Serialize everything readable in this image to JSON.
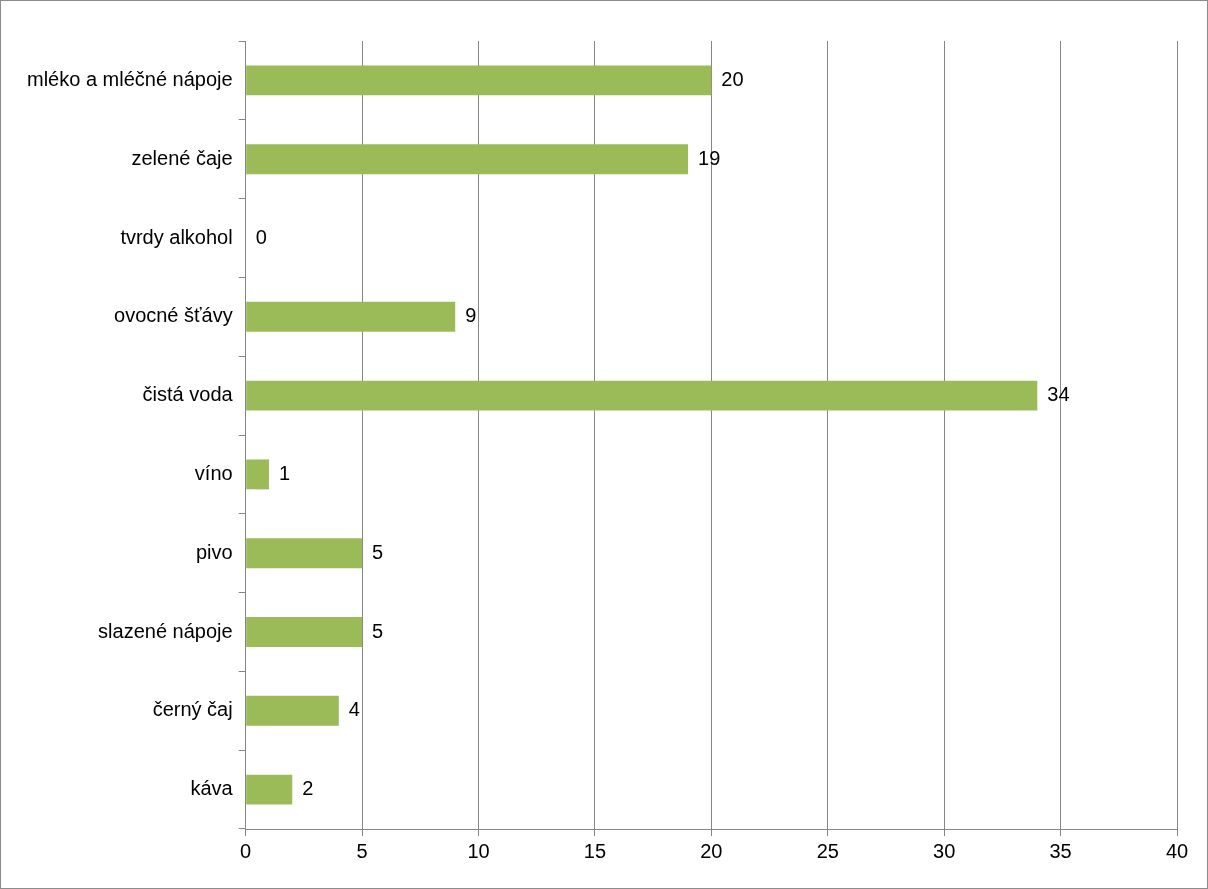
{
  "chart_data": {
    "type": "bar",
    "orientation": "horizontal",
    "categories": [
      "mléko a mléčné nápoje",
      "zelené čaje",
      "tvrdy alkohol",
      "ovocné šťávy",
      "čistá voda",
      "víno",
      "pivo",
      "slazené nápoje",
      "černý čaj",
      "káva"
    ],
    "values": [
      20,
      19,
      0,
      9,
      34,
      1,
      5,
      5,
      4,
      2
    ],
    "color": "#9bbb59",
    "xlim": [
      0,
      40
    ],
    "xticks": [
      0,
      5,
      10,
      15,
      20,
      25,
      30,
      35,
      40
    ],
    "grid": "x",
    "legend": false,
    "data_labels": true
  }
}
